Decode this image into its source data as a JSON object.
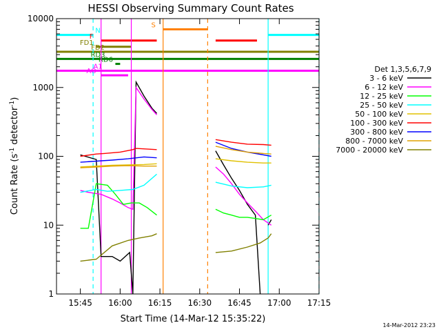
{
  "chart_data": {
    "type": "line",
    "title": "HESSI Observing Summary Count Rates",
    "xlabel": "Start Time (14-Mar-12 15:35:22)",
    "ylabel_main": "Count Rate (s",
    "ylabel_sup1": "-1",
    "ylabel_mid": " detector",
    "ylabel_sup2": "-1",
    "ylabel_end": ")",
    "y_scale": "log",
    "x_range_min": [
      15.6,
      17.25
    ],
    "y_range": [
      1,
      10000
    ],
    "x_ticks": [
      {
        "value": 15.75,
        "label": "15:45"
      },
      {
        "value": 16.0,
        "label": "16:00"
      },
      {
        "value": 16.25,
        "label": "16:15"
      },
      {
        "value": 16.5,
        "label": "16:30"
      },
      {
        "value": 16.75,
        "label": "16:45"
      },
      {
        "value": 17.0,
        "label": "17:00"
      },
      {
        "value": 17.25,
        "label": "17:15"
      }
    ],
    "y_ticks": [
      {
        "value": 1,
        "label": "1"
      },
      {
        "value": 10,
        "label": "10"
      },
      {
        "value": 100,
        "label": "100"
      },
      {
        "value": 1000,
        "label": "1000"
      },
      {
        "value": 10000,
        "label": "10000"
      }
    ],
    "legend_title": "Det 1,3,5,6,7,9",
    "legend_position": "right",
    "series": [
      {
        "name": "3 - 6 keV",
        "color": "#000000",
        "segments": [
          [
            [
              15.75,
              105
            ],
            [
              15.85,
              90
            ],
            [
              15.88,
              3.5
            ],
            [
              15.95,
              3.5
            ],
            [
              16.0,
              3.0
            ],
            [
              16.06,
              4.0
            ],
            [
              16.08,
              1.0
            ],
            [
              16.1,
              1200
            ],
            [
              16.15,
              750
            ],
            [
              16.2,
              500
            ],
            [
              16.23,
              420
            ]
          ],
          [
            [
              16.6,
              120
            ],
            [
              16.65,
              75
            ],
            [
              16.7,
              48
            ],
            [
              16.75,
              32
            ],
            [
              16.8,
              20
            ],
            [
              16.85,
              14
            ],
            [
              16.88,
              1.0
            ]
          ],
          [
            [
              16.93,
              10
            ],
            [
              16.95,
              12
            ]
          ]
        ]
      },
      {
        "name": "6 - 12 keV",
        "color": "#ff00ff",
        "segments": [
          [
            [
              15.75,
              32
            ],
            [
              15.8,
              30
            ],
            [
              15.88,
              28
            ],
            [
              15.95,
              24
            ],
            [
              16.0,
              21
            ],
            [
              16.05,
              18
            ],
            [
              16.08,
              17
            ],
            [
              16.1,
              1000
            ],
            [
              16.15,
              680
            ],
            [
              16.2,
              480
            ],
            [
              16.23,
              400
            ]
          ],
          [
            [
              16.6,
              70
            ],
            [
              16.65,
              55
            ],
            [
              16.7,
              40
            ],
            [
              16.75,
              28
            ],
            [
              16.8,
              21
            ],
            [
              16.85,
              16
            ],
            [
              16.9,
              12
            ],
            [
              16.95,
              10
            ]
          ]
        ]
      },
      {
        "name": "12 - 25 keV",
        "color": "#00ff00",
        "segments": [
          [
            [
              15.75,
              9
            ],
            [
              15.8,
              9
            ],
            [
              15.85,
              40
            ],
            [
              15.92,
              38
            ],
            [
              15.97,
              28
            ],
            [
              16.02,
              20
            ],
            [
              16.07,
              21
            ],
            [
              16.12,
              21
            ],
            [
              16.17,
              18
            ],
            [
              16.23,
              14
            ]
          ],
          [
            [
              16.6,
              17
            ],
            [
              16.65,
              15
            ],
            [
              16.7,
              14
            ],
            [
              16.75,
              13
            ],
            [
              16.8,
              13
            ],
            [
              16.85,
              12.5
            ],
            [
              16.9,
              12
            ],
            [
              16.95,
              14
            ]
          ]
        ]
      },
      {
        "name": "25 - 50 keV",
        "color": "#00ffff",
        "segments": [
          [
            [
              15.75,
              30
            ],
            [
              15.85,
              33
            ],
            [
              15.92,
              31
            ],
            [
              16.0,
              32
            ],
            [
              16.08,
              33
            ],
            [
              16.15,
              38
            ],
            [
              16.23,
              55
            ]
          ],
          [
            [
              16.6,
              42
            ],
            [
              16.7,
              37
            ],
            [
              16.8,
              35
            ],
            [
              16.9,
              36
            ],
            [
              16.95,
              38
            ]
          ]
        ]
      },
      {
        "name": "50 - 100 keV",
        "color": "#e0c000",
        "segments": [
          [
            [
              15.75,
              70
            ],
            [
              15.85,
              72
            ],
            [
              15.95,
              74
            ],
            [
              16.05,
              75
            ],
            [
              16.15,
              76
            ],
            [
              16.23,
              78
            ]
          ],
          [
            [
              16.6,
              92
            ],
            [
              16.7,
              86
            ],
            [
              16.8,
              82
            ],
            [
              16.9,
              80
            ],
            [
              16.95,
              80
            ]
          ]
        ]
      },
      {
        "name": "100 - 300 keV",
        "color": "#ff0000",
        "segments": [
          [
            [
              15.75,
              100
            ],
            [
              15.85,
              108
            ],
            [
              15.9,
              110
            ],
            [
              16.0,
              115
            ],
            [
              16.08,
              125
            ],
            [
              16.1,
              130
            ],
            [
              16.23,
              125
            ]
          ],
          [
            [
              16.6,
              175
            ],
            [
              16.7,
              160
            ],
            [
              16.8,
              150
            ],
            [
              16.9,
              148
            ],
            [
              16.95,
              145
            ]
          ]
        ]
      },
      {
        "name": "300 - 800 keV",
        "color": "#0000ff",
        "segments": [
          [
            [
              15.75,
              82
            ],
            [
              15.85,
              85
            ],
            [
              15.95,
              88
            ],
            [
              16.05,
              92
            ],
            [
              16.15,
              98
            ],
            [
              16.23,
              95
            ]
          ],
          [
            [
              16.6,
              160
            ],
            [
              16.7,
              130
            ],
            [
              16.8,
              115
            ],
            [
              16.9,
              105
            ],
            [
              16.95,
              100
            ]
          ]
        ]
      },
      {
        "name": "800 - 7000 keV",
        "color": "#e0a000",
        "segments": [
          [
            [
              15.75,
              68
            ],
            [
              15.85,
              70
            ],
            [
              15.95,
              72
            ],
            [
              16.05,
              73
            ],
            [
              16.15,
              72
            ],
            [
              16.23,
              72
            ]
          ],
          [
            [
              16.6,
              140
            ],
            [
              16.7,
              125
            ],
            [
              16.8,
              115
            ],
            [
              16.9,
              110
            ],
            [
              16.95,
              108
            ]
          ]
        ]
      },
      {
        "name": "7000 - 20000 keV",
        "color": "#808000",
        "segments": [
          [
            [
              15.75,
              3.0
            ],
            [
              15.85,
              3.2
            ],
            [
              15.95,
              5.0
            ],
            [
              16.05,
              6.0
            ],
            [
              16.12,
              6.5
            ],
            [
              16.2,
              7.0
            ],
            [
              16.23,
              7.5
            ]
          ],
          [
            [
              16.6,
              4.0
            ],
            [
              16.7,
              4.2
            ],
            [
              16.8,
              4.8
            ],
            [
              16.88,
              5.5
            ],
            [
              16.93,
              6.5
            ],
            [
              16.95,
              7.5
            ]
          ]
        ]
      }
    ],
    "flag_bars": [
      {
        "label": "N",
        "color": "#00ffff",
        "y": 5800,
        "spans": [
          [
            15.6,
            15.83
          ],
          [
            16.93,
            17.25
          ]
        ]
      },
      {
        "label": "S",
        "color": "#ff8000",
        "y": 7000,
        "spans": [
          [
            16.27,
            16.55
          ]
        ]
      },
      {
        "label": "F",
        "color": "#ff0000",
        "y": 4800,
        "spans": [
          [
            15.88,
            16.23
          ],
          [
            16.6,
            16.86
          ]
        ]
      },
      {
        "label": "FD1",
        "color": "#808000",
        "y": 3900,
        "spans": [
          [
            15.85,
            16.07
          ]
        ]
      },
      {
        "label": "FD2",
        "color": "#808000",
        "y": 3300,
        "spans": [
          [
            15.6,
            17.25
          ]
        ]
      },
      {
        "label": "RD3",
        "color": "#008000",
        "y": 2600,
        "spans": [
          [
            15.6,
            17.25
          ]
        ]
      },
      {
        "label": "RD6",
        "color": "#008000",
        "y": 2200,
        "spans": [
          [
            15.97,
            16.0
          ]
        ]
      },
      {
        "label": "A1",
        "color": "#ff00ff",
        "y": 1750,
        "spans": [
          [
            15.6,
            17.25
          ]
        ]
      },
      {
        "label": "AO",
        "color": "#ff00ff",
        "y": 1500,
        "spans": [
          [
            15.88,
            16.05
          ]
        ]
      }
    ],
    "vlines": [
      {
        "x": 15.83,
        "color": "#00ffff",
        "style": "dashed"
      },
      {
        "x": 15.88,
        "color": "#ff00ff",
        "style": "solid"
      },
      {
        "x": 16.07,
        "color": "#ff00ff",
        "style": "solid"
      },
      {
        "x": 16.27,
        "color": "#ff8000",
        "style": "solid"
      },
      {
        "x": 16.55,
        "color": "#ff8000",
        "style": "dashed"
      },
      {
        "x": 16.93,
        "color": "#00ffff",
        "style": "solid"
      },
      {
        "x": 17.25,
        "color": "#00ffff",
        "style": "dashed"
      }
    ],
    "timestamp": "14-Mar-2012 23:23"
  }
}
